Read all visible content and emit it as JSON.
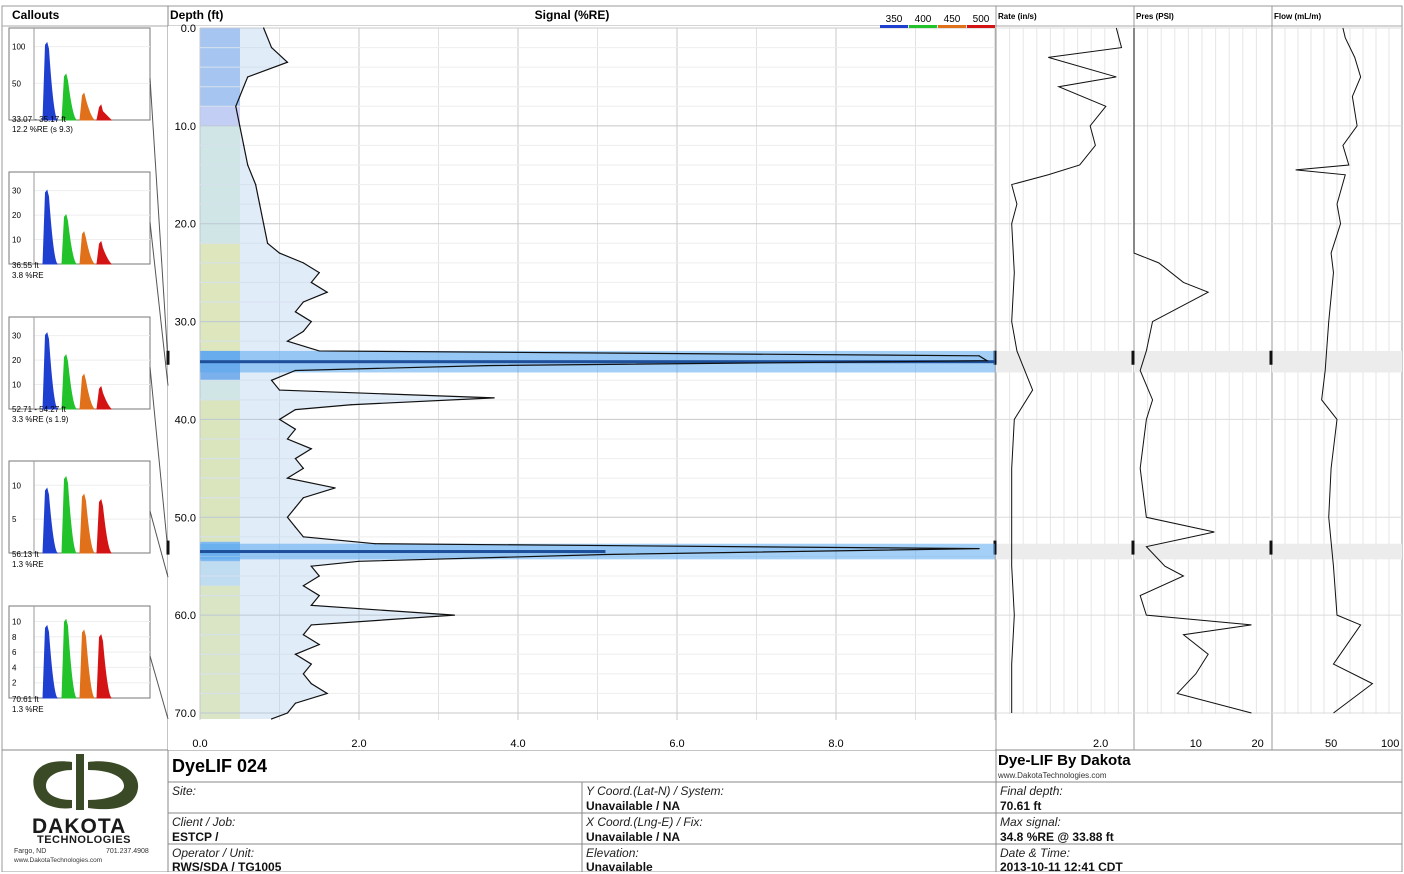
{
  "panels": {
    "callouts_header": "Callouts",
    "depth_header": "Depth (ft)",
    "signal_header": "Signal (%RE)",
    "rate_header": "Rate (in/s)",
    "pres_header": "Pres (PSI)",
    "flow_header": "Flow (mL/m)",
    "wavelength_legend": [
      {
        "label": "350",
        "color": "#1f3fd0"
      },
      {
        "label": "400",
        "color": "#22c22a"
      },
      {
        "label": "450",
        "color": "#e0701a"
      },
      {
        "label": "500",
        "color": "#d41414"
      }
    ]
  },
  "callouts": [
    {
      "yticks": [
        "100",
        "50"
      ],
      "ymax": 120,
      "peaks": [
        105,
        62,
        36,
        20
      ],
      "caption1": "33.07 - 35.17 ft",
      "caption2": "12.2 %RE (s 9.3)"
    },
    {
      "yticks": [
        "30",
        "20",
        "10"
      ],
      "ymax": 36,
      "peaks": [
        30,
        20,
        13,
        9
      ],
      "caption1": "36.55 ft",
      "caption2": "3.8 %RE"
    },
    {
      "yticks": [
        "30",
        "20",
        "10"
      ],
      "ymax": 36,
      "peaks": [
        31,
        22,
        14,
        9
      ],
      "caption1": "52.71 - 54.27 ft",
      "caption2": "3.3 %RE (s 1.9)"
    },
    {
      "yticks": [
        "10",
        "5"
      ],
      "ymax": 13,
      "peaks": [
        9.5,
        11.2,
        8.6,
        7.8
      ],
      "caption1": "56.13 ft",
      "caption2": "1.3 %RE"
    },
    {
      "yticks": [
        "10",
        "8",
        "6",
        "4",
        "2"
      ],
      "ymax": 11.5,
      "peaks": [
        9.4,
        10.2,
        8.8,
        8.2
      ],
      "caption1": "70.61 ft",
      "caption2": "1.3 %RE"
    }
  ],
  "chart_data": [
    {
      "type": "line",
      "title": "Signal (%RE)",
      "ylabel": "Depth (ft)",
      "y_ticks": [
        "0.0",
        "10.0",
        "20.0",
        "30.0",
        "40.0",
        "50.0",
        "60.0",
        "70.0"
      ],
      "x_ticks": [
        "0.0",
        "2.0",
        "4.0",
        "6.0",
        "8.0"
      ],
      "xlim": [
        0,
        10
      ],
      "ylim": [
        0,
        70.61
      ],
      "series": [
        {
          "depth": [
            0,
            2,
            3.5,
            5,
            7,
            8,
            10,
            12,
            14,
            16,
            18,
            20,
            22,
            23,
            24,
            25,
            26,
            27,
            28,
            29,
            30,
            31,
            32,
            33,
            33.5,
            34,
            34.5,
            35,
            36,
            37,
            37.8,
            38.5,
            39,
            40,
            41,
            42,
            43,
            44,
            45,
            46,
            47,
            48,
            49,
            50,
            51,
            52,
            52.7,
            53.2,
            53.8,
            54.5,
            55,
            56,
            57,
            58,
            59,
            60,
            61,
            62,
            63,
            64,
            65,
            66,
            67,
            68,
            69,
            70,
            70.61
          ],
          "signal": [
            0.8,
            0.9,
            1.1,
            0.6,
            0.5,
            0.45,
            0.5,
            0.55,
            0.6,
            0.7,
            0.75,
            0.8,
            0.85,
            1.0,
            1.3,
            1.5,
            1.4,
            1.6,
            1.3,
            1.2,
            1.4,
            1.3,
            1.1,
            1.5,
            9.8,
            9.9,
            3.6,
            1.2,
            0.9,
            1.0,
            3.7,
            1.9,
            1.2,
            1.0,
            1.2,
            1.1,
            1.4,
            1.2,
            1.3,
            1.1,
            1.7,
            1.3,
            1.2,
            1.1,
            1.2,
            1.3,
            2.2,
            9.8,
            5.1,
            2.0,
            1.4,
            1.5,
            1.3,
            1.5,
            1.4,
            3.2,
            1.4,
            1.3,
            1.5,
            1.2,
            1.4,
            1.3,
            1.4,
            1.6,
            1.2,
            1.1,
            0.9
          ]
        }
      ]
    },
    {
      "type": "line",
      "title": "Rate (in/s)",
      "x_ticks": [
        "2.0"
      ],
      "xlim": [
        0,
        2.6
      ],
      "ylim": [
        0,
        70.61
      ],
      "series": [
        {
          "depth": [
            0,
            2,
            3,
            5,
            6,
            8,
            10,
            12,
            14,
            15,
            16,
            18,
            20,
            25,
            30,
            33,
            37,
            40,
            45,
            50,
            55,
            60,
            65,
            70
          ],
          "rate": [
            2.3,
            2.4,
            1.0,
            2.3,
            1.2,
            2.1,
            1.8,
            1.9,
            1.6,
            1.0,
            0.3,
            0.4,
            0.3,
            0.35,
            0.3,
            0.4,
            0.7,
            0.35,
            0.3,
            0.3,
            0.3,
            0.35,
            0.3,
            0.3
          ]
        }
      ]
    },
    {
      "type": "line",
      "title": "Pres (PSI)",
      "x_ticks": [
        "10",
        "20"
      ],
      "xlim": [
        0,
        22
      ],
      "ylim": [
        0,
        70.61
      ],
      "series": [
        {
          "depth": [
            0,
            23,
            24,
            26,
            27,
            30,
            33,
            35,
            38,
            40,
            45,
            50,
            51.5,
            53,
            55,
            56,
            58,
            60,
            61,
            62,
            64,
            66,
            68,
            70
          ],
          "pressure": [
            0,
            0,
            4,
            8,
            12,
            3,
            2,
            1,
            3,
            2,
            1,
            2,
            13,
            2,
            5,
            8,
            1,
            2,
            19,
            8,
            12,
            10,
            7,
            19
          ]
        }
      ]
    },
    {
      "type": "line",
      "title": "Flow (mL/m)",
      "x_ticks": [
        "50",
        "100"
      ],
      "xlim": [
        0,
        110
      ],
      "ylim": [
        0,
        70.61
      ],
      "series": [
        {
          "depth": [
            0,
            1,
            3,
            5,
            7,
            10,
            12,
            14,
            14.5,
            15,
            18,
            20,
            23,
            25,
            30,
            35,
            38,
            40,
            45,
            50,
            55,
            60,
            61,
            65,
            67,
            70
          ],
          "flow": [
            60,
            62,
            70,
            75,
            68,
            72,
            60,
            65,
            20,
            62,
            55,
            58,
            50,
            52,
            48,
            45,
            42,
            55,
            50,
            48,
            52,
            55,
            75,
            52,
            85,
            52
          ]
        }
      ]
    }
  ],
  "footer": {
    "logo_word": "DAKOTA",
    "logo_sub": "TECHNOLOGIES",
    "address_city": "Fargo, ND",
    "address_phone": "701.237.4908",
    "address_web": "www.DakotaTechnologies.com",
    "log_name": "DyeLIF 024",
    "brand": "Dye-LIF By Dakota",
    "brand_url": "www.DakotaTechnologies.com",
    "site_label": "Site:",
    "site_value": "",
    "client_label": "Client / Job:",
    "client_value": "ESTCP /",
    "operator_label": "Operator / Unit:",
    "operator_value": "RWS/SDA / TG1005",
    "ycoord_label": "Y Coord.(Lat-N) / System:",
    "ycoord_value": "Unavailable / NA",
    "xcoord_label": "X Coord.(Lng-E) / Fix:",
    "xcoord_value": "Unavailable / NA",
    "elev_label": "Elevation:",
    "elev_value": "Unavailable",
    "final_depth_label": "Final depth:",
    "final_depth_value": "70.61 ft",
    "max_signal_label": "Max signal:",
    "max_signal_value": "34.8 %RE @ 33.88 ft",
    "datetime_label": "Date & Time:",
    "datetime_value": "2013-10-11 12:41 CDT"
  }
}
